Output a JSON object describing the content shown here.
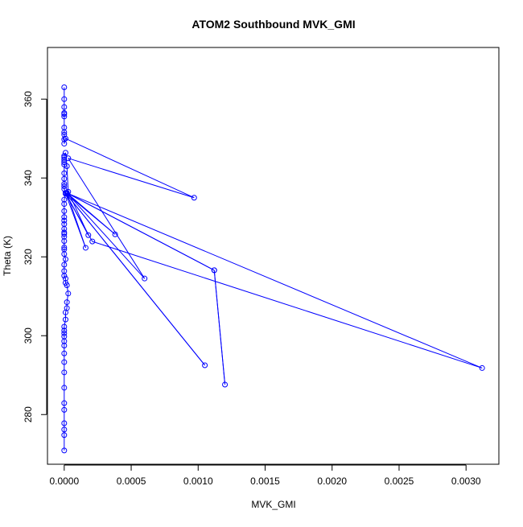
{
  "chart_data": {
    "type": "scatter",
    "title": "ATOM2 Southbound MVK_GMI",
    "xlabel": "MVK_GMI",
    "ylabel": "Theta (K)",
    "xlim": [
      -0.000125,
      0.003245
    ],
    "ylim": [
      267.4,
      373.1
    ],
    "x_ticks": [
      0.0,
      0.0005,
      0.001,
      0.0015,
      0.002,
      0.0025,
      0.003
    ],
    "x_tick_labels": [
      "0.0000",
      "0.0005",
      "0.0010",
      "0.0015",
      "0.0020",
      "0.0025",
      "0.0030"
    ],
    "y_ticks": [
      280,
      300,
      320,
      340,
      360
    ],
    "y_tick_labels": [
      "280",
      "300",
      "320",
      "340",
      "360"
    ],
    "grid": false,
    "legend": "none",
    "color": "#0000ff",
    "series": [
      {
        "mode": "lines+markers",
        "x": [
          0.0,
          0.0,
          0.0,
          0.0,
          0.0,
          0.0,
          0.0,
          0.0,
          0.0,
          0.0,
          0.0,
          0.0,
          0.0,
          0.0,
          0.0,
          0.0,
          1e-05,
          1e-05,
          2e-05,
          2e-05,
          3e-05,
          2e-05,
          1e-05,
          1e-05,
          0.0,
          0.0,
          0.0,
          1e-05,
          0.0,
          0.0,
          0.0,
          0.0,
          0.0,
          0.0,
          0.0,
          0.0,
          0.0,
          0.0,
          0.0,
          0.0,
          0.0,
          0.0,
          1e-05,
          0.0,
          0.0,
          0.0,
          0.0,
          0.0,
          0.0,
          0.0,
          0.0,
          0.0,
          0.0,
          1e-05,
          2e-05,
          3e-05,
          0.00018,
          1e-05,
          0.00105,
          1e-05,
          0.00038,
          2e-05,
          0.00112,
          0.0012,
          0.00112,
          2e-05,
          0.00016,
          1e-05,
          0.00021,
          0.00312,
          2e-05,
          0.0006,
          3e-05,
          0.00097,
          1e-05,
          0.0,
          0.0,
          0.0,
          0.0,
          0.0,
          0.0,
          0.0,
          0.0,
          0.0,
          0.0,
          0.0
        ],
        "y": [
          270.9,
          274.8,
          276.2,
          277.8,
          281.2,
          282.9,
          286.8,
          290.7,
          293.3,
          295.5,
          297.5,
          298.6,
          299.8,
          300.6,
          301.3,
          302.3,
          304.1,
          305.9,
          307.0,
          308.5,
          310.7,
          312.8,
          313.4,
          314.5,
          315.2,
          316.4,
          318.0,
          319.4,
          320.7,
          321.9,
          322.4,
          324.0,
          325.1,
          325.8,
          326.2,
          327.1,
          328.3,
          329.2,
          330.1,
          331.6,
          333.4,
          334.5,
          336.0,
          337.2,
          337.9,
          338.5,
          339.8,
          341.2,
          343.4,
          344.0,
          344.6,
          345.2,
          345.6,
          346.4,
          343.0,
          336.5,
          325.5,
          336.2,
          292.5,
          336.2,
          325.7,
          336.2,
          316.6,
          287.6,
          316.6,
          336.2,
          322.3,
          336.1,
          323.9,
          291.8,
          336.2,
          314.5,
          345.0,
          335.0,
          350.0,
          348.7,
          349.8,
          351.0,
          351.6,
          352.8,
          355.6,
          356.2,
          356.5,
          358.0,
          360.0,
          363.0
        ]
      }
    ]
  }
}
